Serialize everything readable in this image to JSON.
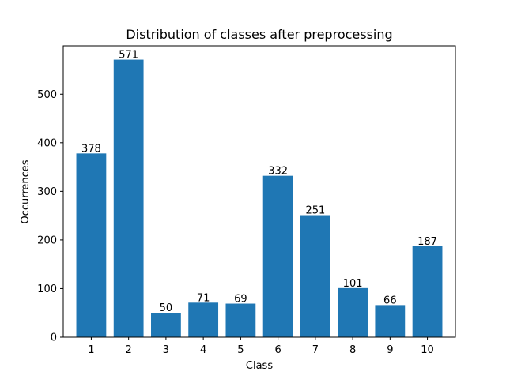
{
  "chart_data": {
    "type": "bar",
    "title": "Distribution of classes after preprocessing",
    "xlabel": "Class",
    "ylabel": "Occurrences",
    "categories": [
      "1",
      "2",
      "3",
      "4",
      "5",
      "6",
      "7",
      "8",
      "9",
      "10"
    ],
    "values": [
      378,
      571,
      50,
      71,
      69,
      332,
      251,
      101,
      66,
      187
    ],
    "data_labels": [
      "378",
      "571",
      "50",
      "71",
      "69",
      "332",
      "251",
      "101",
      "66",
      "187"
    ],
    "yticks": [
      0,
      100,
      200,
      300,
      400,
      500
    ],
    "ytick_labels": [
      "0",
      "100",
      "200",
      "300",
      "400",
      "500"
    ],
    "ylim": [
      0,
      599.55
    ],
    "grid": false,
    "legend": "none",
    "bar_color": "#1f77b4"
  }
}
